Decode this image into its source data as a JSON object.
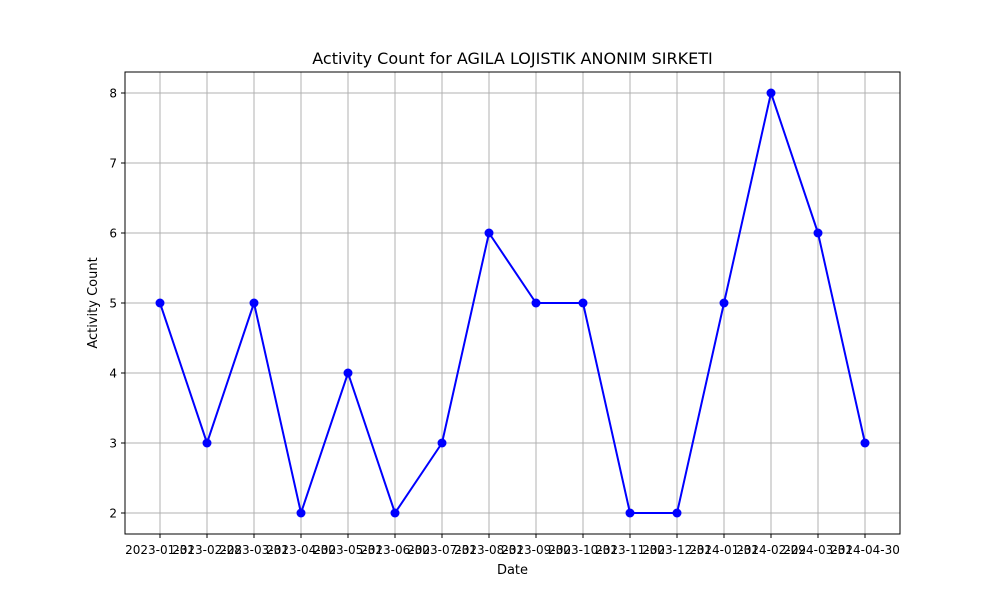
{
  "chart_data": {
    "type": "line",
    "title": "Activity Count for AGILA LOJISTIK ANONIM SIRKETI",
    "xlabel": "Date",
    "ylabel": "Activity Count",
    "x": [
      "2023-01-31",
      "2023-02-28",
      "2023-03-31",
      "2023-04-30",
      "2023-05-31",
      "2023-06-30",
      "2023-07-31",
      "2023-08-31",
      "2023-09-30",
      "2023-10-31",
      "2023-11-30",
      "2023-12-31",
      "2024-01-31",
      "2024-02-29",
      "2024-03-31",
      "2024-04-30"
    ],
    "series": [
      {
        "values": [
          5,
          3,
          5,
          2,
          4,
          2,
          3,
          6,
          5,
          5,
          2,
          2,
          5,
          8,
          6,
          3
        ],
        "color": "#0000ff",
        "marker": "circle"
      }
    ],
    "ylim": [
      1.7,
      8.3
    ],
    "yticks": [
      "2",
      "3",
      "4",
      "5",
      "6",
      "7",
      "8"
    ],
    "grid": true,
    "colors": {
      "grid": "#b0b0b0",
      "axes": "#000000",
      "line": "#0000ff"
    }
  }
}
